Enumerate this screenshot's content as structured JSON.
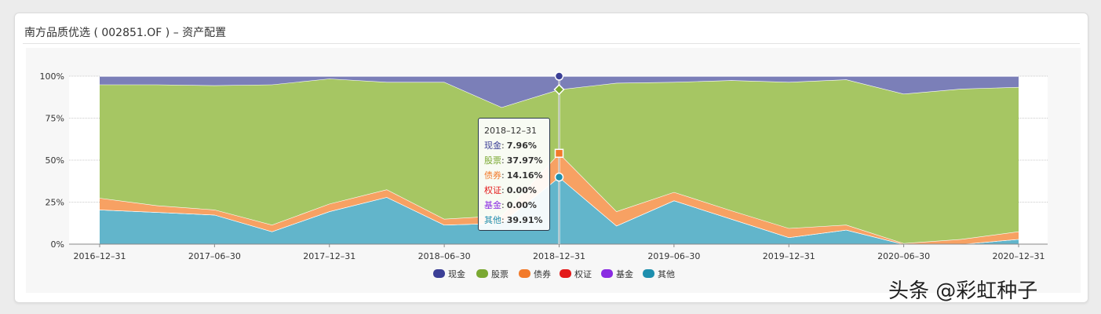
{
  "page": {
    "title": "南方品质优选 ( 002851.OF ) – 资产配置",
    "watermark": "头条 @彩虹种子"
  },
  "colors": {
    "现金": "#7b7fb8",
    "股票": "#a6c663",
    "债券": "#f7a163",
    "权证": "#f0a9a9",
    "基金": "#b39ddb",
    "其他": "#62b5cb",
    "legend": {
      "现金": "#3b3f96",
      "股票": "#7aa832",
      "债券": "#f27a2a",
      "权证": "#e31a1a",
      "基金": "#8a2be2",
      "其他": "#1e8fae"
    }
  },
  "tooltip": {
    "date": "2018–12–31",
    "rows": [
      {
        "name": "现金",
        "sep": ":",
        "value": "7.96%"
      },
      {
        "name": "股票",
        "sep": ":",
        "value": "37.97%"
      },
      {
        "name": "债券",
        "sep": ":",
        "value": "14.16%"
      },
      {
        "name": "权证",
        "sep": ":",
        "value": "0.00%"
      },
      {
        "name": "基金",
        "sep": ":",
        "value": "0.00%"
      },
      {
        "name": "其他",
        "sep": ":",
        "value": "39.91%"
      }
    ]
  },
  "chart_data": {
    "type": "area",
    "stacked": true,
    "title": "南方品质优选 ( 002851.OF ) – 资产配置",
    "x": [
      "2016–12–31",
      "2017–03–31",
      "2017–06–30",
      "2017–09–30",
      "2017–12–31",
      "2018–03–31",
      "2018–06–30",
      "2018–09–30",
      "2018–12–31",
      "2019–03–31",
      "2019–06–30",
      "2019–09–30",
      "2019–12–31",
      "2020–03–31",
      "2020–06–30",
      "2020–09–30",
      "2020–12–31"
    ],
    "x_tick_labels": [
      "2016–12–31",
      "2017–06–30",
      "2017–12–31",
      "2018–06–30",
      "2018–12–31",
      "2019–06–30",
      "2019–12–31",
      "2020–06–30",
      "2020–12–31"
    ],
    "y_tick_labels": [
      "0%",
      "25%",
      "50%",
      "75%",
      "100%"
    ],
    "ylim": [
      0,
      100
    ],
    "grid": true,
    "legend_position": "bottom",
    "series": [
      {
        "name": "其他",
        "values": [
          20.5,
          19.0,
          17.5,
          7.5,
          19.5,
          28.0,
          11.5,
          12.5,
          39.91,
          11.0,
          26.0,
          15.0,
          4.0,
          8.5,
          0.0,
          0.0,
          3.0
        ]
      },
      {
        "name": "基金",
        "values": [
          0,
          0,
          0,
          0,
          0,
          0,
          0,
          0,
          0,
          0,
          0,
          0,
          0,
          0,
          0,
          0,
          0
        ]
      },
      {
        "name": "权证",
        "values": [
          0,
          0,
          0,
          0,
          0,
          0,
          0,
          0,
          0,
          0,
          0,
          0,
          0,
          0,
          0,
          0,
          0
        ]
      },
      {
        "name": "债券",
        "values": [
          7.0,
          4.0,
          3.0,
          4.0,
          4.5,
          4.5,
          3.5,
          4.5,
          14.16,
          8.5,
          5.0,
          5.0,
          5.5,
          3.0,
          0.5,
          3.0,
          4.5
        ]
      },
      {
        "name": "股票",
        "values": [
          67.5,
          72.0,
          74.0,
          83.5,
          74.5,
          64.0,
          81.5,
          64.5,
          37.97,
          76.5,
          65.5,
          77.5,
          87.0,
          86.5,
          89.0,
          89.5,
          86.0
        ]
      },
      {
        "name": "现金",
        "values": [
          5.0,
          5.0,
          5.5,
          5.0,
          1.5,
          3.5,
          3.5,
          18.5,
          7.96,
          4.0,
          3.5,
          2.5,
          3.5,
          2.0,
          10.5,
          7.5,
          6.5
        ]
      }
    ],
    "legend": [
      "现金",
      "股票",
      "债券",
      "权证",
      "基金",
      "其他"
    ],
    "highlight_index": 8
  }
}
